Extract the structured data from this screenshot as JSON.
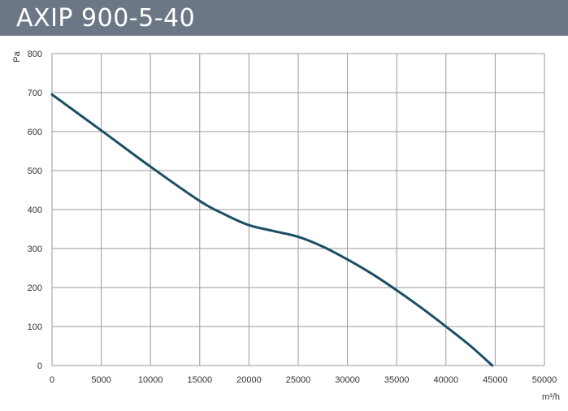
{
  "chart_data": {
    "type": "line",
    "title": "AXIP 900-5-40",
    "xlabel": "m³/h",
    "ylabel": "Pa",
    "xlim": [
      0,
      50000
    ],
    "ylim": [
      0,
      800
    ],
    "x_ticks": [
      0,
      5000,
      10000,
      15000,
      20000,
      25000,
      30000,
      35000,
      40000,
      45000,
      50000
    ],
    "y_ticks": [
      0,
      100,
      200,
      300,
      400,
      500,
      600,
      700,
      800
    ],
    "grid": true,
    "series": [
      {
        "color": "#1b4f66",
        "x": [
          0,
          5000,
          10000,
          15000,
          17500,
          20000,
          22500,
          25000,
          27500,
          30000,
          32500,
          35000,
          37500,
          40000,
          42500,
          44700
        ],
        "y": [
          695,
          603,
          510,
          422,
          388,
          360,
          345,
          330,
          305,
          272,
          235,
          193,
          148,
          100,
          50,
          0
        ]
      }
    ]
  }
}
